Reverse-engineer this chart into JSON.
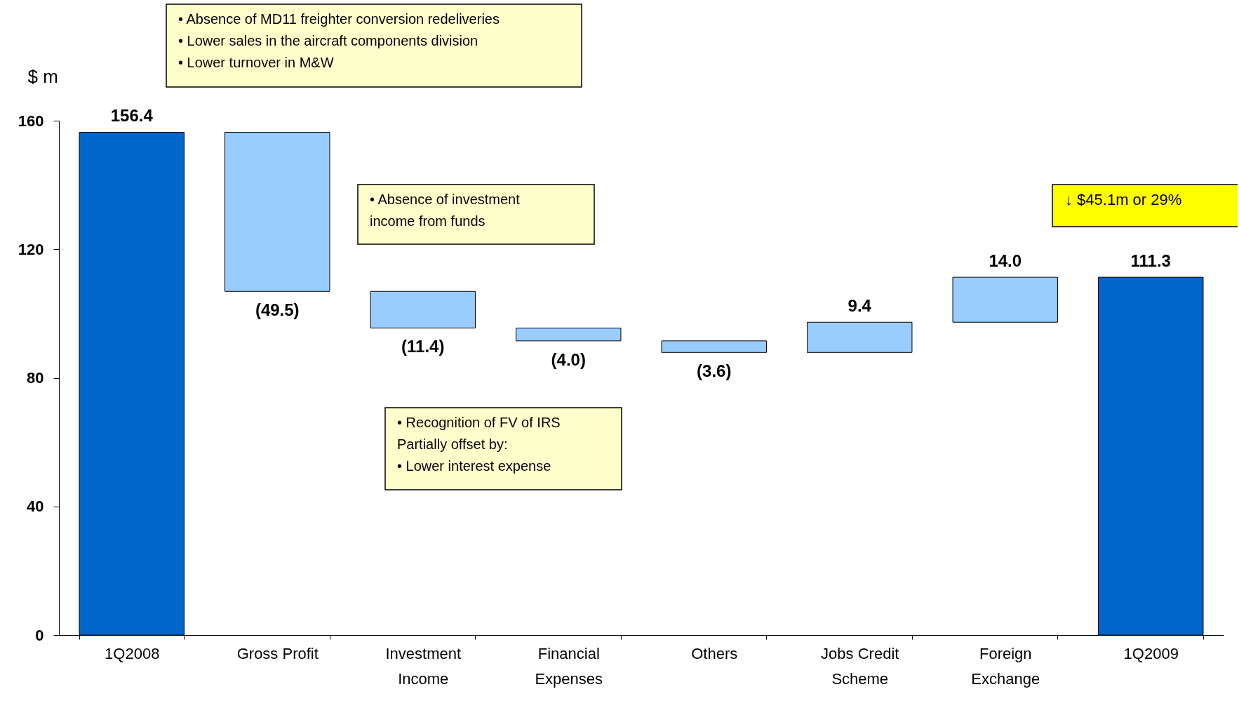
{
  "chart_data": {
    "type": "bar",
    "ylabel": "$ m",
    "categories": [
      "1Q2008",
      "Gross Profit",
      "Investment Income",
      "Financial Expenses",
      "Others",
      "Jobs Credit Scheme",
      "Foreign Exchange",
      "1Q2009"
    ],
    "values": [
      156.4,
      -49.5,
      -11.4,
      -4.0,
      -3.6,
      9.4,
      14.0,
      111.3
    ],
    "base": [
      0,
      156.4,
      106.9,
      95.5,
      91.5,
      87.9,
      97.3,
      0
    ],
    "colors": [
      "#0066cc",
      "#99ccff",
      "#99ccff",
      "#99ccff",
      "#99ccff",
      "#99ccff",
      "#99ccff",
      "#0066cc"
    ],
    "value_labels": [
      "156.4",
      "(49.5)",
      "(11.4)",
      "(4.0)",
      "(3.6)",
      "9.4",
      "14.0",
      "111.3"
    ],
    "ylim": [
      0,
      160
    ],
    "yticks": [
      0,
      40,
      80,
      120,
      160
    ],
    "grid": false,
    "annotations": [
      "•  Absence of MD11 freighter conversion redeliveries\n•  Lower sales in the aircraft components division\n•  Lower turnover in M&W",
      "•  Absence of investment\n    income from funds",
      "•  Recognition of FV of IRS\nPartially offset by:\n•  Lower interest expense",
      "↓  $45.1m or 29%"
    ]
  }
}
